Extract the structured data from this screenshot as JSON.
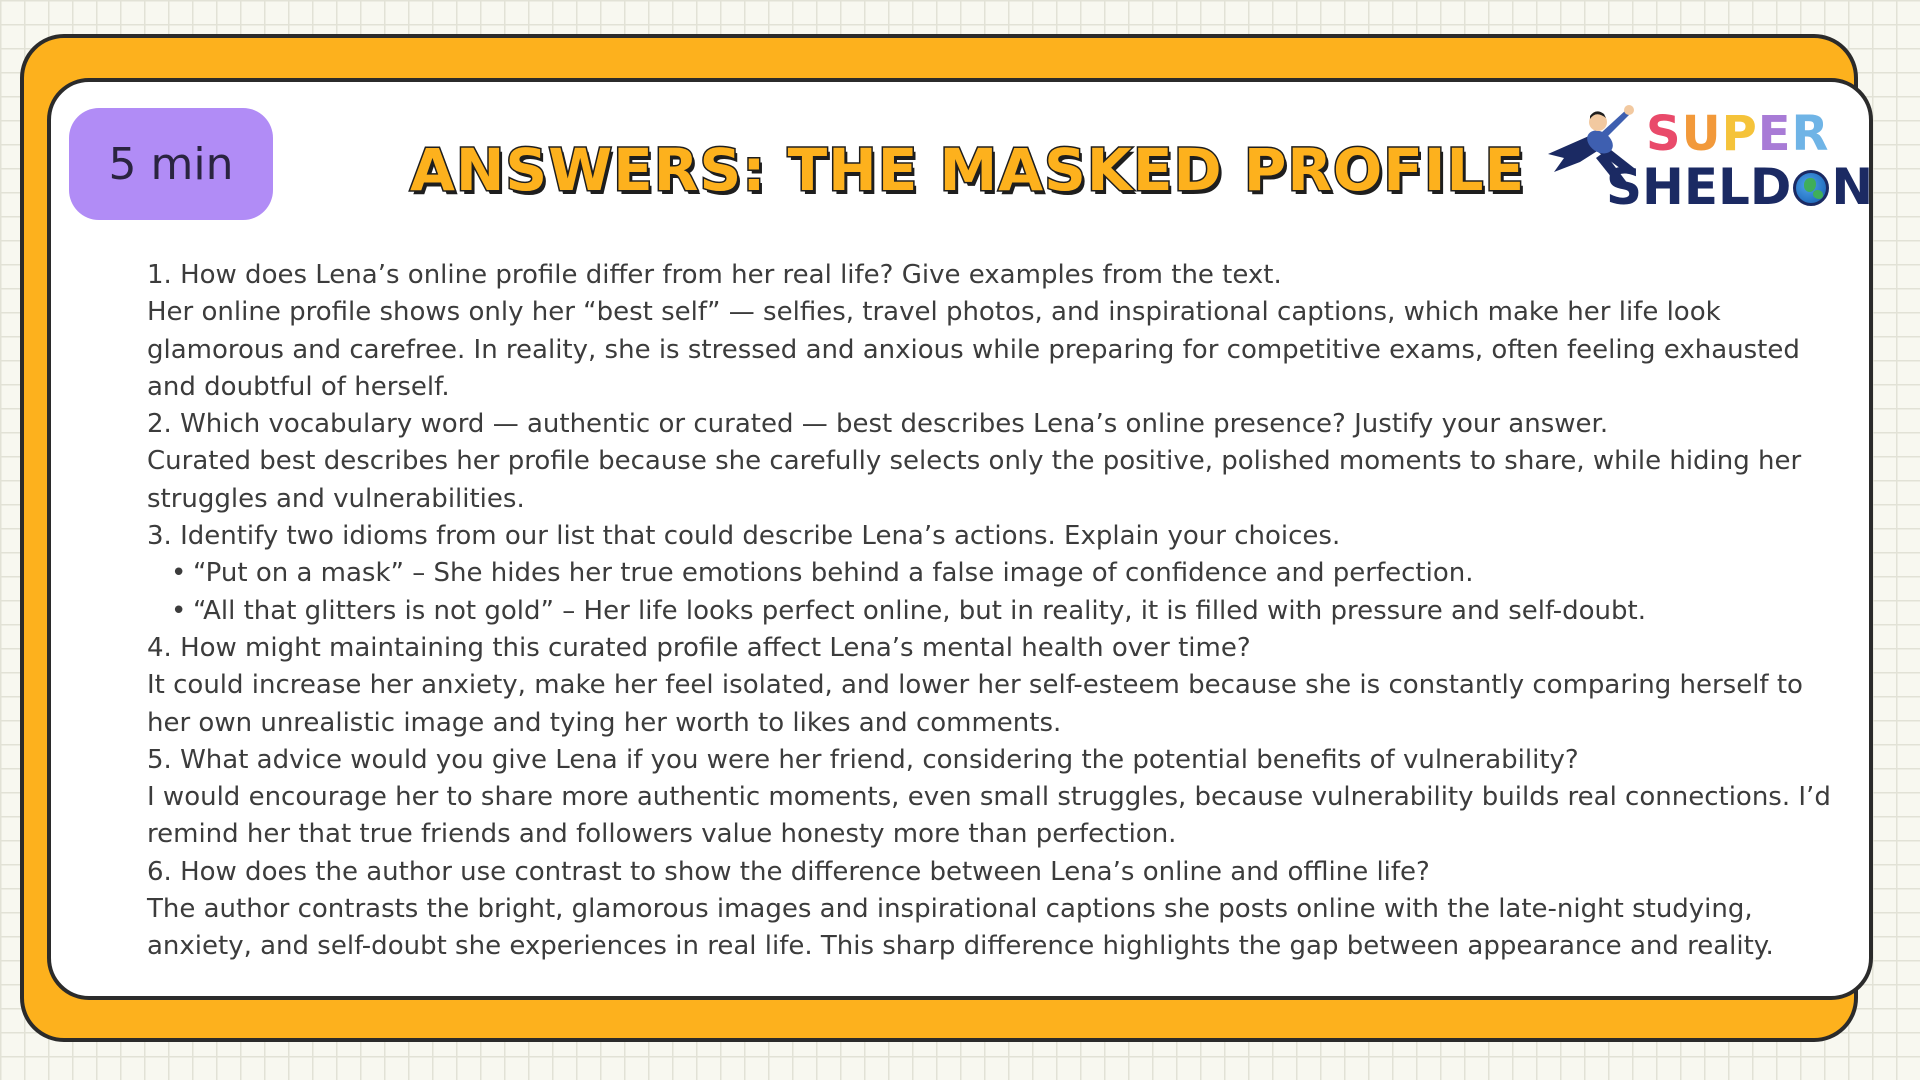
{
  "badge": {
    "time": "5 min"
  },
  "header": {
    "title": "ANSWERS:  THE MASKED PROFILE"
  },
  "logo": {
    "super_letters": [
      {
        "char": "S",
        "color": "#e94a6a"
      },
      {
        "char": "U",
        "color": "#f2993a"
      },
      {
        "char": "P",
        "color": "#f5c33a"
      },
      {
        "char": "E",
        "color": "#a87bd6"
      },
      {
        "char": "R",
        "color": "#6fb4e6"
      }
    ],
    "sheldon_before": "SHELD",
    "sheldon_after": "N",
    "globe_icon": "globe-icon",
    "hero_icon": "flying-superhero-icon"
  },
  "colors": {
    "frame": "#fdb11d",
    "badge": "#b18cf6",
    "text": "#3c3c3c",
    "logo_navy": "#1b2a63"
  },
  "questions": [
    {
      "question": "1. How does Lena’s online profile differ from her real life? Give examples from the text.",
      "answer": " Her online profile shows only her “best self” — selfies, travel photos, and inspirational captions, which make her life look glamorous and carefree. In reality, she is stressed and anxious while preparing for competitive exams, often feeling exhausted and doubtful of herself."
    },
    {
      "question": "2. Which vocabulary word — authentic or curated — best describes Lena’s online presence? Justify your answer.",
      "answer": "Curated best describes her profile because she carefully selects only the positive, polished moments to share, while hiding her struggles and vulnerabilities."
    },
    {
      "question": "3. Identify two idioms from our list that could describe Lena’s actions. Explain your choices.",
      "bullets": [
        "“Put on a mask” – She hides her true emotions behind a false image of confidence and perfection.",
        "“All that glitters is not gold” – Her life looks perfect online, but in reality, it is filled with pressure and self-doubt."
      ]
    },
    {
      "question": "4. How might maintaining this curated profile affect Lena’s mental health over time?",
      "answer": " It could increase her anxiety, make her feel isolated, and lower her self-esteem because she is constantly comparing herself to her own unrealistic image and tying her worth to likes and comments."
    },
    {
      "question": "5. What advice would you give Lena if you were her friend, considering the potential benefits of vulnerability?",
      "answer": " I would encourage her to share more authentic moments, even small struggles, because vulnerability builds real connections. I’d remind her that true friends and followers value honesty more than perfection."
    },
    {
      "question": "6. How does the author use contrast to show the difference between Lena’s online and offline life?",
      "answer": " The author contrasts the bright, glamorous images and inspirational captions she posts online with the late-night studying, anxiety, and self-doubt she experiences in real life. This sharp difference highlights the gap between appearance and reality."
    }
  ]
}
